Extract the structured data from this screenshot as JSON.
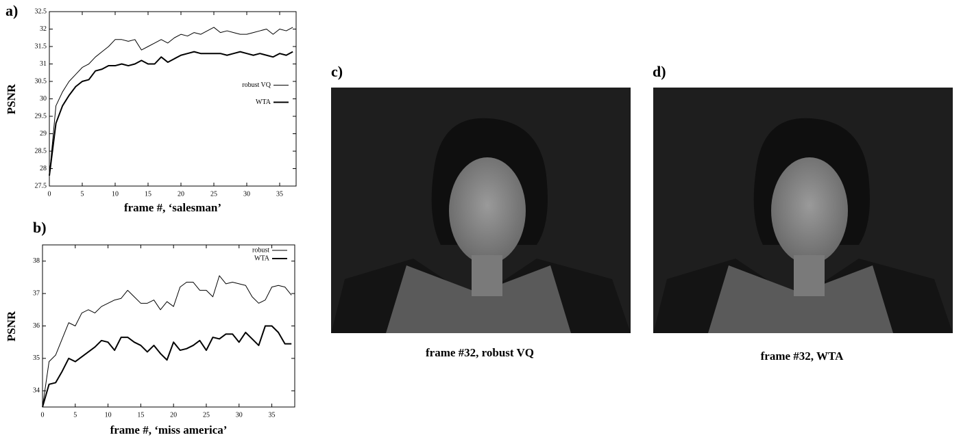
{
  "chart_data": [
    {
      "type": "line",
      "label": "a)",
      "y_label": "PSNR",
      "x_label": "frame #, ‘salesman’",
      "x": [
        0,
        1,
        2,
        3,
        4,
        5,
        6,
        7,
        8,
        9,
        10,
        11,
        12,
        13,
        14,
        15,
        16,
        17,
        18,
        19,
        20,
        21,
        22,
        23,
        24,
        25,
        26,
        27,
        28,
        29,
        30,
        31,
        32,
        33,
        34,
        35,
        36,
        37
      ],
      "xlim": [
        0,
        37.5
      ],
      "xticks": [
        0,
        5,
        10,
        15,
        20,
        25,
        30,
        35
      ],
      "ylim": [
        27.5,
        32.5
      ],
      "yticks": [
        27.5,
        28,
        28.5,
        29,
        29.5,
        30,
        30.5,
        31,
        31.5,
        32,
        32.5
      ],
      "legend": "center right",
      "series": [
        {
          "name": "robust VQ",
          "color": "#000000",
          "line_width": 1,
          "values": [
            27.8,
            29.8,
            30.2,
            30.5,
            30.7,
            30.9,
            31.0,
            31.2,
            31.35,
            31.5,
            31.7,
            31.7,
            31.65,
            31.7,
            31.4,
            31.5,
            31.6,
            31.7,
            31.6,
            31.75,
            31.85,
            31.8,
            31.9,
            31.85,
            31.95,
            32.05,
            31.9,
            31.95,
            31.9,
            31.85,
            31.85,
            31.9,
            31.95,
            32.0,
            31.85,
            32.0,
            31.95,
            32.05
          ]
        },
        {
          "name": "WTA",
          "color": "#000000",
          "line_width": 2,
          "values": [
            27.8,
            29.3,
            29.8,
            30.1,
            30.35,
            30.5,
            30.55,
            30.8,
            30.85,
            30.95,
            30.95,
            31.0,
            30.95,
            31.0,
            31.1,
            31.0,
            31.0,
            31.2,
            31.05,
            31.15,
            31.25,
            31.3,
            31.35,
            31.3,
            31.3,
            31.3,
            31.3,
            31.25,
            31.3,
            31.35,
            31.3,
            31.25,
            31.3,
            31.25,
            31.2,
            31.3,
            31.25,
            31.35
          ]
        }
      ]
    },
    {
      "type": "line",
      "label": "b)",
      "y_label": "PSNR",
      "x_label": "frame #, ‘miss america’",
      "x": [
        0,
        1,
        2,
        3,
        4,
        5,
        6,
        7,
        8,
        9,
        10,
        11,
        12,
        13,
        14,
        15,
        16,
        17,
        18,
        19,
        20,
        21,
        22,
        23,
        24,
        25,
        26,
        27,
        28,
        29,
        30,
        31,
        32,
        33,
        34,
        35,
        36,
        37,
        38
      ],
      "xlim": [
        0,
        38.5
      ],
      "xticks": [
        0,
        5,
        10,
        15,
        20,
        25,
        30,
        35
      ],
      "ylim": [
        33.5,
        38.5
      ],
      "yticks": [
        34,
        35,
        36,
        37,
        38
      ],
      "legend": "upper right",
      "series": [
        {
          "name": "robust",
          "color": "#000000",
          "line_width": 1,
          "values": [
            33.5,
            34.9,
            35.1,
            35.6,
            36.1,
            36.0,
            36.4,
            36.5,
            36.4,
            36.6,
            36.7,
            36.8,
            36.85,
            37.1,
            36.9,
            36.7,
            36.7,
            36.8,
            36.5,
            36.75,
            36.6,
            37.2,
            37.35,
            37.35,
            37.1,
            37.1,
            36.9,
            37.55,
            37.3,
            37.35,
            37.3,
            37.25,
            36.9,
            36.7,
            36.8,
            37.2,
            37.25,
            37.2,
            36.95
          ]
        },
        {
          "name": "WTA",
          "color": "#000000",
          "line_width": 2,
          "values": [
            33.5,
            34.2,
            34.25,
            34.6,
            35.0,
            34.9,
            35.05,
            35.2,
            35.35,
            35.55,
            35.5,
            35.25,
            35.65,
            35.65,
            35.5,
            35.4,
            35.2,
            35.4,
            35.15,
            34.95,
            35.5,
            35.25,
            35.3,
            35.4,
            35.55,
            35.25,
            35.65,
            35.6,
            35.75,
            35.75,
            35.5,
            35.8,
            35.6,
            35.4,
            36.0,
            36.0,
            35.8,
            35.45,
            35.45
          ]
        }
      ]
    }
  ],
  "figures": [
    {
      "label": "c)",
      "caption": "frame #32, robust VQ"
    },
    {
      "label": "d)",
      "caption": "frame #32, WTA"
    }
  ]
}
